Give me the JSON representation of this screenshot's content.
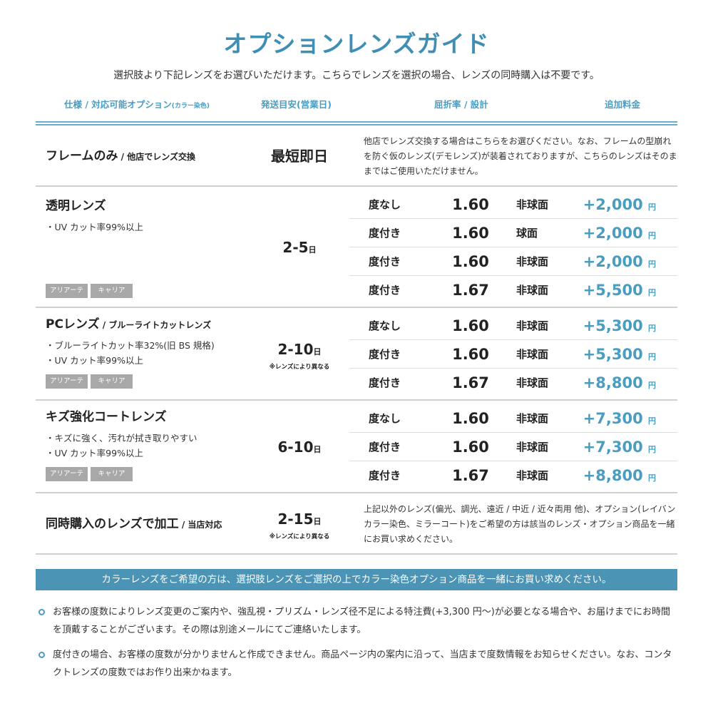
{
  "title": "オプションレンズガイド",
  "subtitle": "選択肢より下記レンズをお選びいただけます。こちらでレンズを選択の場合、レンズの同時購入は不要です。",
  "headers": {
    "spec": "仕様 / 対応可能オプション",
    "spec_small": "(カラー染色)",
    "ship": "発送目安(営業日)",
    "index": "屈折率 / 設計",
    "price": "追加料金"
  },
  "colors": {
    "accent": "#3f8fb5",
    "price": "#4a9cc0",
    "banner": "#4b94b5",
    "tag": "#a8a8a8"
  },
  "rows": [
    {
      "name": "フレームのみ",
      "name_small": " / 他店でレンズ交換",
      "days": "最短即日",
      "desc": "他店でレンズ交換する場合はこちらをお選びください。なお、フレームの型崩れを防ぐ仮のレンズ(デモレンズ)が装着されておりますが、こちらのレンズはそのままではご使用いただけません。"
    },
    {
      "name": "透明レンズ",
      "name_small": "",
      "bullets": [
        "・UV カット率99%以上"
      ],
      "tags": [
        "アリアーテ",
        "キャリア"
      ],
      "days": "2-5",
      "days_unit": "日",
      "days_note": "",
      "items": [
        {
          "deg": "度なし",
          "idx": "1.60",
          "design": "非球面",
          "price": "+2,000",
          "unit": "円"
        },
        {
          "deg": "度付き",
          "idx": "1.60",
          "design": "球面",
          "price": "+2,000",
          "unit": "円"
        },
        {
          "deg": "度付き",
          "idx": "1.60",
          "design": "非球面",
          "price": "+2,000",
          "unit": "円"
        },
        {
          "deg": "度付き",
          "idx": "1.67",
          "design": "非球面",
          "price": "+5,500",
          "unit": "円"
        }
      ]
    },
    {
      "name": "PCレンズ",
      "name_small": " / ブルーライトカットレンズ",
      "bullets": [
        "・ブルーライトカット率32%(旧 BS 規格)",
        "・UV カット率99%以上"
      ],
      "tags": [
        "アリアーテ",
        "キャリア"
      ],
      "days": "2-10",
      "days_unit": "日",
      "days_note": "※レンズにより異なる",
      "items": [
        {
          "deg": "度なし",
          "idx": "1.60",
          "design": "非球面",
          "price": "+5,300",
          "unit": "円"
        },
        {
          "deg": "度付き",
          "idx": "1.60",
          "design": "非球面",
          "price": "+5,300",
          "unit": "円"
        },
        {
          "deg": "度付き",
          "idx": "1.67",
          "design": "非球面",
          "price": "+8,800",
          "unit": "円"
        }
      ]
    },
    {
      "name": "キズ強化コートレンズ",
      "name_small": "",
      "bullets": [
        "・キズに強く、汚れが拭き取りやすい",
        "・UV カット率99%以上"
      ],
      "tags": [
        "アリアーテ",
        "キャリア"
      ],
      "days": "6-10",
      "days_unit": "日",
      "days_note": "",
      "items": [
        {
          "deg": "度なし",
          "idx": "1.60",
          "design": "非球面",
          "price": "+7,300",
          "unit": "円"
        },
        {
          "deg": "度付き",
          "idx": "1.60",
          "design": "非球面",
          "price": "+7,300",
          "unit": "円"
        },
        {
          "deg": "度付き",
          "idx": "1.67",
          "design": "非球面",
          "price": "+8,800",
          "unit": "円"
        }
      ]
    },
    {
      "name": "同時購入のレンズで加工",
      "name_small": " / 当店対応",
      "days": "2-15",
      "days_unit": "日",
      "days_note": "※レンズにより異なる",
      "desc": "上記以外のレンズ(偏光、調光、遠近 / 中近 / 近々両用 他)、オプション(レイバンカラー染色、ミラーコート)をご希望の方は該当のレンズ・オプション商品を一緒にお買い求めください。"
    }
  ],
  "banner": "カラーレンズをご希望の方は、選択肢レンズをご選択の上でカラー染色オプション商品を一緒にお買い求めください。",
  "notes": [
    "お客様の度数によりレンズ変更のご案内や、強乱視・プリズム・レンズ径不足による特注費(+3,300 円〜)が必要となる場合や、お届けまでにお時間を頂戴することがございます。その際は別途メールにてご連絡いたします。",
    "度付きの場合、お客様の度数が分かりませんと作成できません。商品ページ内の案内に沿って、当店まで度数情報をお知らせください。なお、コンタクトレンズの度数ではお作り出来かねます。"
  ]
}
